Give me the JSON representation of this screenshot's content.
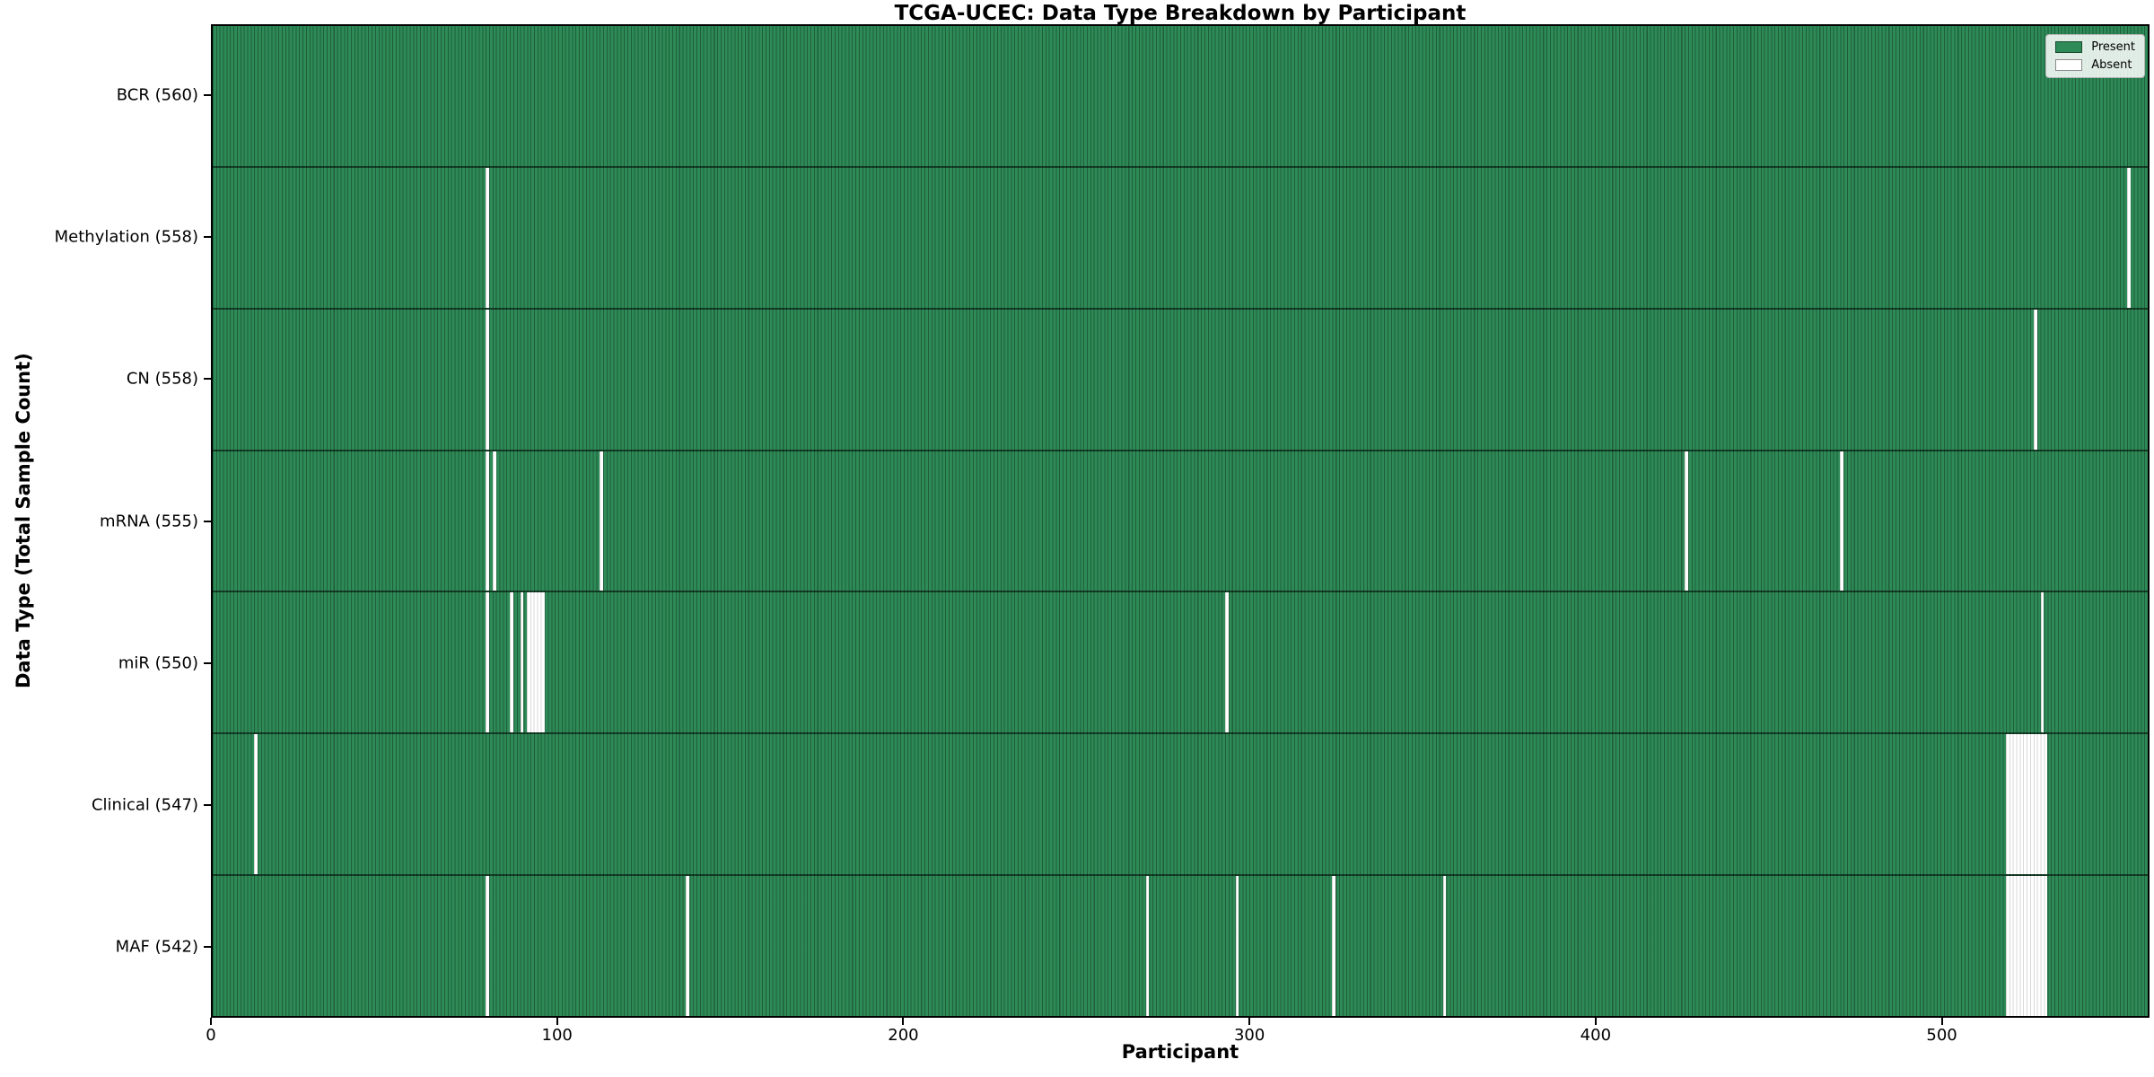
{
  "figure": {
    "title": "TCGA-UCEC: Data Type Breakdown by Participant",
    "xlabel": "Participant",
    "ylabel": "Data Type (Total Sample Count)"
  },
  "legend": {
    "items": [
      {
        "label": "Present",
        "color": "#2e8b57"
      },
      {
        "label": "Absent",
        "color": "#ffffff"
      }
    ]
  },
  "chart_data": {
    "type": "heatmap",
    "title": "TCGA-UCEC: Data Type Breakdown by Participant",
    "xlabel": "Participant",
    "ylabel": "Data Type (Total Sample Count)",
    "legend_position": "upper right",
    "n_participants": 560,
    "xlim": [
      0,
      560
    ],
    "x_ticks": [
      0,
      100,
      200,
      300,
      400,
      500
    ],
    "colors": {
      "present": "#2e8b57",
      "absent": "#ffffff",
      "cell_edge_on_present": "rgba(0,0,0,0.32)",
      "cell_edge_on_absent": "rgba(0,0,0,0.15)",
      "row_divider": "rgba(0,0,0,0.55)"
    },
    "rows": [
      {
        "label": "BCR (560)",
        "data_type": "BCR",
        "present_count": 560,
        "absent_participants": []
      },
      {
        "label": "Methylation (558)",
        "data_type": "Methylation",
        "present_count": 558,
        "absent_participants": [
          79,
          554
        ]
      },
      {
        "label": "CN (558)",
        "data_type": "CN",
        "present_count": 558,
        "absent_participants": [
          79,
          527
        ]
      },
      {
        "label": "mRNA (555)",
        "data_type": "mRNA",
        "present_count": 555,
        "absent_participants": [
          79,
          81,
          112,
          426,
          471
        ]
      },
      {
        "label": "miR (550)",
        "data_type": "miR",
        "present_count": 550,
        "absent_participants": [
          79,
          86,
          89,
          91,
          92,
          93,
          94,
          95,
          293,
          529
        ]
      },
      {
        "label": "Clinical (547)",
        "data_type": "Clinical",
        "present_count": 547,
        "absent_participants": [
          12,
          519,
          520,
          521,
          522,
          523,
          524,
          525,
          526,
          527,
          528,
          529,
          530
        ]
      },
      {
        "label": "MAF (542)",
        "data_type": "MAF",
        "present_count": 542,
        "absent_participants": [
          79,
          137,
          270,
          296,
          324,
          356,
          519,
          520,
          521,
          522,
          523,
          524,
          525,
          526,
          527,
          528,
          529,
          530
        ]
      }
    ]
  }
}
